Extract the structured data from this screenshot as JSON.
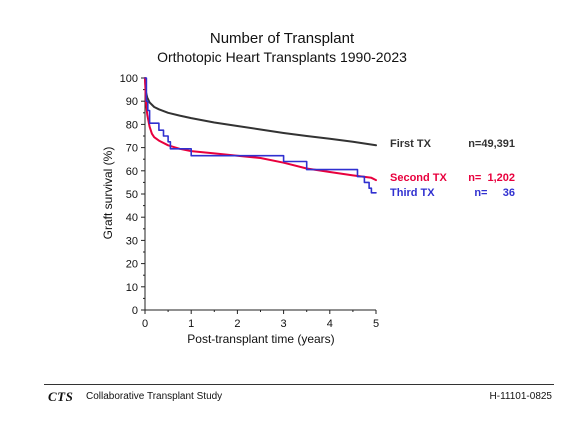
{
  "chart_data": {
    "type": "line",
    "title": "Number of Transplant",
    "subtitle": "Orthotopic Heart Transplants 1990-2023",
    "xlabel": "Post-transplant time (years)",
    "ylabel": "Graft survival (%)",
    "xlim": [
      0,
      5
    ],
    "ylim": [
      0,
      100
    ],
    "x_ticks": [
      0,
      1,
      2,
      3,
      4,
      5
    ],
    "y_ticks": [
      0,
      10,
      20,
      30,
      40,
      50,
      60,
      70,
      80,
      90,
      100
    ],
    "grid": false,
    "legend_position": "right",
    "series": [
      {
        "name": "First TX",
        "n_label": "n=49,391",
        "color": "#333333",
        "step": false,
        "points": [
          [
            0,
            100
          ],
          [
            0.02,
            94
          ],
          [
            0.05,
            91.5
          ],
          [
            0.1,
            89.5
          ],
          [
            0.2,
            87.5
          ],
          [
            0.3,
            86.5
          ],
          [
            0.5,
            85
          ],
          [
            0.75,
            83.8
          ],
          [
            1,
            82.7
          ],
          [
            1.5,
            80.8
          ],
          [
            2,
            79.3
          ],
          [
            2.5,
            77.8
          ],
          [
            3,
            76.3
          ],
          [
            3.5,
            75
          ],
          [
            4,
            73.8
          ],
          [
            4.5,
            72.5
          ],
          [
            5,
            71
          ]
        ]
      },
      {
        "name": "Second TX",
        "n_label": "n=  1,202",
        "color": "#e8003d",
        "step": false,
        "points": [
          [
            0,
            100
          ],
          [
            0.02,
            90
          ],
          [
            0.05,
            84
          ],
          [
            0.1,
            79
          ],
          [
            0.15,
            76
          ],
          [
            0.2,
            74.5
          ],
          [
            0.3,
            73
          ],
          [
            0.5,
            71
          ],
          [
            0.75,
            69.5
          ],
          [
            1,
            68.5
          ],
          [
            1.5,
            67.5
          ],
          [
            2,
            66.5
          ],
          [
            2.5,
            65.5
          ],
          [
            3,
            63.5
          ],
          [
            3.5,
            61
          ],
          [
            4,
            59.5
          ],
          [
            4.5,
            58
          ],
          [
            4.9,
            57
          ],
          [
            5,
            56
          ]
        ]
      },
      {
        "name": "Third TX",
        "n_label": "n=     36",
        "color": "#3030d0",
        "step": true,
        "points": [
          [
            0,
            100
          ],
          [
            0.03,
            90
          ],
          [
            0.06,
            86
          ],
          [
            0.1,
            80.5
          ],
          [
            0.3,
            77.5
          ],
          [
            0.4,
            75
          ],
          [
            0.5,
            72.5
          ],
          [
            0.55,
            69.5
          ],
          [
            1,
            66.5
          ],
          [
            3,
            64
          ],
          [
            3.5,
            60.5
          ],
          [
            4.6,
            57.5
          ],
          [
            4.75,
            55
          ],
          [
            4.85,
            52.5
          ],
          [
            4.9,
            50.5
          ],
          [
            5,
            50.5
          ]
        ]
      }
    ]
  },
  "footer": {
    "logo": "CTS",
    "organization": "Collaborative Transplant Study",
    "code": "H-11101-0825"
  }
}
